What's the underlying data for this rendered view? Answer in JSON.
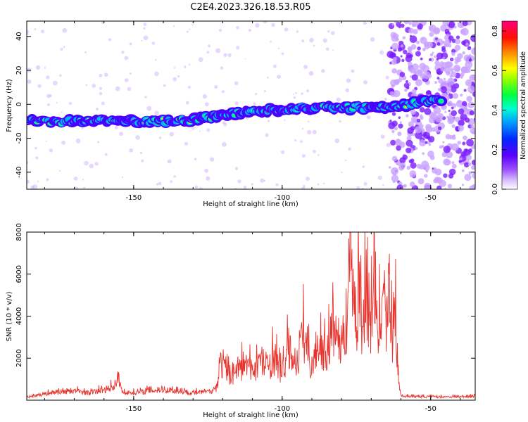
{
  "title": "C2E4.2023.326.18.53.R05",
  "colors": {
    "snr_line": "#e8322c",
    "spectrogram_band": [
      "#4b00ff",
      "#00b0ff",
      "#00ff80",
      "#ffe600",
      "#ff2a00"
    ],
    "noise": "#c9a3ff"
  },
  "chart_data": [
    {
      "type": "heatmap",
      "xlabel": "Height of straight line (km)",
      "ylabel": "Frequency (Hz)",
      "xlim": [
        -186,
        -35
      ],
      "ylim": [
        -50,
        49
      ],
      "xticks": [
        -150,
        -100,
        -50
      ],
      "yticks": [
        -40,
        -20,
        0,
        20,
        40
      ],
      "colorbar": {
        "label": "Normalized spectral amplitude",
        "range": [
          0.0,
          0.85
        ],
        "ticks": [
          "0.0",
          "0.2",
          "0.4",
          "0.6",
          "0.8"
        ],
        "colormap": [
          "#ffffff",
          "#c8a0ff",
          "#6000ff",
          "#0030ff",
          "#00e0ff",
          "#00ff60",
          "#80ff00",
          "#ffff00",
          "#ff8000",
          "#ff0000",
          "#ff0090"
        ]
      },
      "band_frequency_trend": {
        "x": [
          -186,
          -160,
          -140,
          -130,
          -120,
          -110,
          -100,
          -90,
          -80,
          -70,
          -60,
          -50,
          -45
        ],
        "y": [
          -10,
          -10,
          -10,
          -9.5,
          -6,
          -4,
          -3,
          -2,
          -2,
          -2,
          -1,
          2,
          3
        ]
      }
    },
    {
      "type": "line",
      "xlabel": "Height of straight line (km)",
      "ylabel": "SNR (10 * v/v)",
      "xlim": [
        -186,
        -35
      ],
      "ylim": [
        0,
        8000
      ],
      "xticks": [
        -150,
        -100,
        -50
      ],
      "yticks": [
        2000,
        4000,
        6000,
        8000
      ],
      "series": [
        {
          "x": [
            -186,
            -180,
            -175,
            -170,
            -165,
            -160,
            -156,
            -155,
            -154,
            -150,
            -145,
            -140,
            -135,
            -130,
            -125,
            -122,
            -121,
            -118,
            -115,
            -112,
            -110,
            -108,
            -105,
            -103,
            -100,
            -98,
            -95,
            -93,
            -90,
            -88,
            -85,
            -83,
            -80,
            -78,
            -77,
            -76,
            -75,
            -74,
            -73,
            -72,
            -71,
            -70,
            -69,
            -68,
            -67,
            -66,
            -65,
            -64,
            -63,
            -62,
            -61,
            -60,
            -55,
            -50,
            -45,
            -40,
            -35
          ],
          "y": [
            150,
            300,
            400,
            450,
            350,
            500,
            700,
            1100,
            400,
            350,
            450,
            500,
            450,
            350,
            400,
            600,
            1800,
            1200,
            1500,
            1700,
            1400,
            1900,
            1500,
            2100,
            1300,
            2400,
            1800,
            3200,
            1600,
            2800,
            2200,
            3500,
            2600,
            4100,
            8000,
            5800,
            3200,
            6200,
            2800,
            5600,
            4200,
            3600,
            6800,
            2400,
            3900,
            6400,
            3100,
            5800,
            2700,
            5200,
            1200,
            200,
            180,
            160,
            170,
            160,
            200
          ]
        }
      ]
    }
  ]
}
